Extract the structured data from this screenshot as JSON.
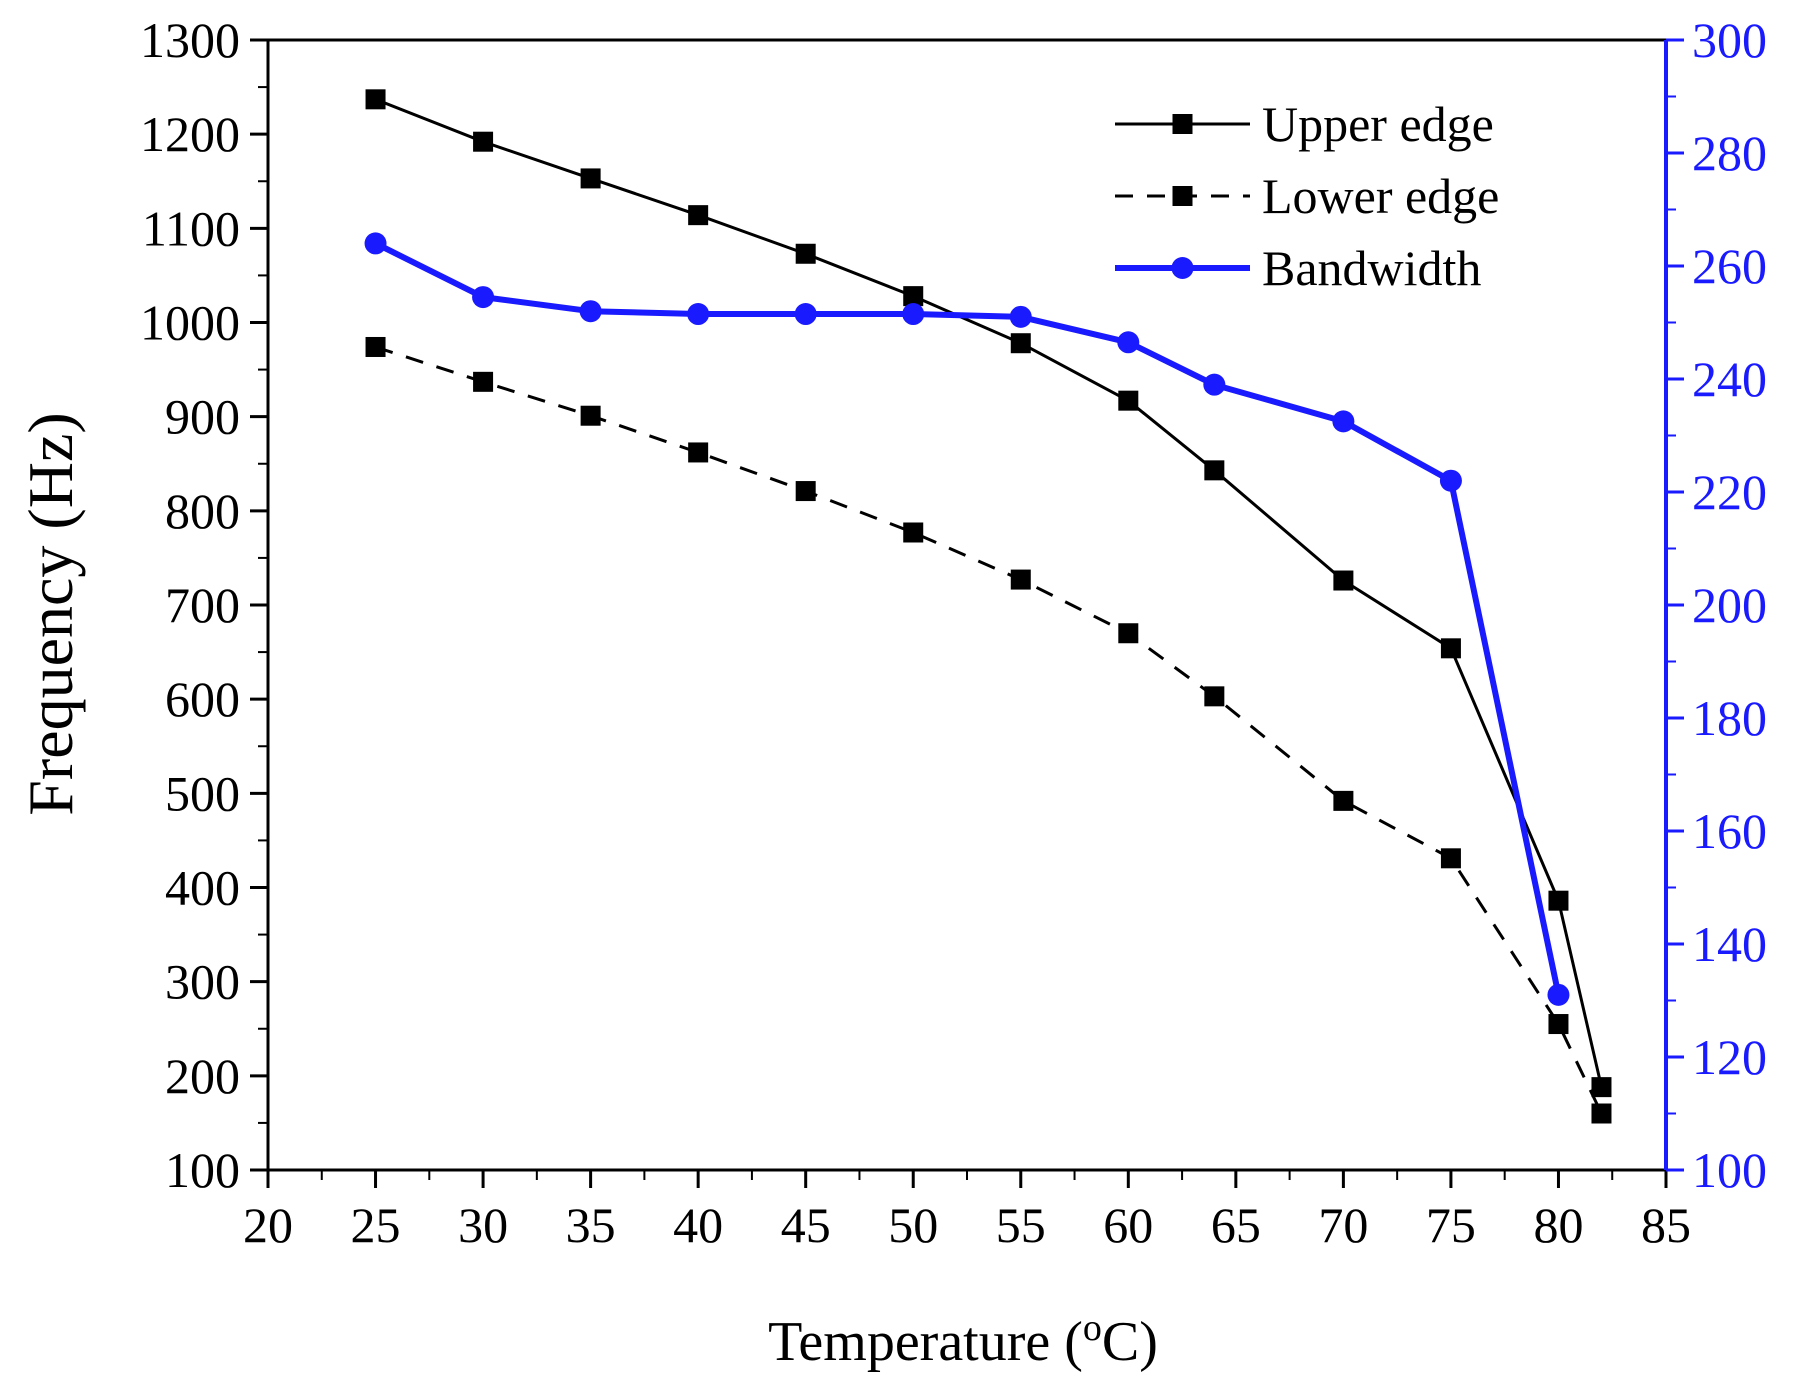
{
  "chart_data": {
    "type": "line",
    "title": "",
    "xlabel": "Temperature (",
    "xlabel_superscript": "o",
    "xlabel_suffix": "C)",
    "ylabel": "Frequency (Hz)",
    "y2label": "",
    "xlim": [
      20,
      85
    ],
    "ylim": [
      100,
      1300
    ],
    "y2lim": [
      100,
      300
    ],
    "x_ticks": [
      "20",
      "25",
      "30",
      "35",
      "40",
      "45",
      "50",
      "55",
      "60",
      "65",
      "70",
      "75",
      "80",
      "85"
    ],
    "y_ticks": [
      "100",
      "200",
      "300",
      "400",
      "500",
      "600",
      "700",
      "800",
      "900",
      "1000",
      "1100",
      "1200",
      "1300"
    ],
    "y2_ticks": [
      "100",
      "120",
      "140",
      "160",
      "180",
      "200",
      "220",
      "240",
      "260",
      "280",
      "300"
    ],
    "legend_position": "top-right",
    "colors": {
      "axis": "#000000",
      "right_axis": "#1a1aff",
      "upper": "#000000",
      "lower": "#000000",
      "bandwidth": "#1a1aff"
    },
    "series": [
      {
        "name": "Upper edge",
        "axis": "left",
        "line_style": "solid",
        "marker": "square",
        "x": [
          25,
          30,
          35,
          40,
          45,
          50,
          55,
          60,
          64,
          70,
          75,
          80,
          82
        ],
        "values": [
          1237,
          1192,
          1153,
          1114,
          1073,
          1028,
          978,
          917,
          843,
          726,
          654,
          386,
          188
        ]
      },
      {
        "name": "Lower edge",
        "axis": "left",
        "line_style": "dashed",
        "marker": "square",
        "x": [
          25,
          30,
          35,
          40,
          45,
          50,
          55,
          60,
          64,
          70,
          75,
          80,
          82
        ],
        "values": [
          974,
          937,
          901,
          862,
          821,
          777,
          727,
          670,
          603,
          492,
          431,
          255,
          160
        ]
      },
      {
        "name": "Bandwidth",
        "axis": "right",
        "line_style": "solid",
        "marker": "circle",
        "x": [
          25,
          30,
          35,
          40,
          45,
          50,
          55,
          60,
          64,
          70,
          75,
          80
        ],
        "values": [
          264,
          254.5,
          252,
          251.5,
          251.5,
          251.5,
          251,
          246.5,
          239,
          232.5,
          222,
          131
        ]
      }
    ]
  }
}
